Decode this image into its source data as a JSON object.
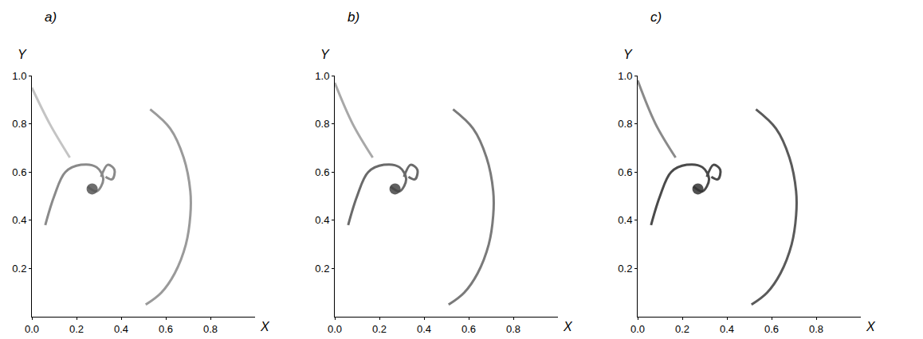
{
  "chart_data": [
    {
      "type": "line",
      "title": "a)",
      "x_label": "X",
      "y_label": "Y",
      "xlim": [
        0,
        1
      ],
      "ylim": [
        0,
        1
      ],
      "xticks": [
        {
          "value": 0,
          "label": "0.0"
        },
        {
          "value": 0.2,
          "label": "0.2"
        },
        {
          "value": 0.4,
          "label": "0.4"
        },
        {
          "value": 0.6,
          "label": "0.6"
        },
        {
          "value": 0.8,
          "label": "0.8"
        }
      ],
      "yticks": [
        {
          "value": 0.2,
          "label": "0.2"
        },
        {
          "value": 0.4,
          "label": "0.4"
        },
        {
          "value": 0.6,
          "label": "0.6"
        },
        {
          "value": 0.8,
          "label": "0.8"
        },
        {
          "value": 1,
          "label": "1.0"
        }
      ],
      "grid": false,
      "series": [
        {
          "type": "line",
          "color": "#9a9a9a",
          "x": [
            0.53,
            0.62,
            0.68,
            0.71,
            0.71,
            0.69,
            0.64,
            0.58,
            0.51
          ],
          "y": [
            0.86,
            0.78,
            0.66,
            0.52,
            0.42,
            0.3,
            0.18,
            0.1,
            0.05
          ]
        },
        {
          "type": "line",
          "color": "#8a8a8a",
          "x": [
            0.06,
            0.1,
            0.15,
            0.22,
            0.29,
            0.32,
            0.29,
            0.25
          ],
          "y": [
            0.38,
            0.5,
            0.6,
            0.63,
            0.62,
            0.57,
            0.52,
            0.54
          ]
        },
        {
          "type": "line",
          "color": "#8a8a8a",
          "x": [
            0.31,
            0.34,
            0.37,
            0.36,
            0.33
          ],
          "y": [
            0.58,
            0.63,
            0.61,
            0.57,
            0.58
          ]
        },
        {
          "type": "line",
          "color": "#c4c4c4",
          "x": [
            0.0,
            0.08,
            0.17
          ],
          "y": [
            0.95,
            0.8,
            0.66
          ]
        },
        {
          "type": "scatter",
          "marker": "circle",
          "color": "#555555",
          "x": [
            0.27
          ],
          "y": [
            0.53
          ]
        }
      ]
    },
    {
      "type": "line",
      "title": "b)",
      "x_label": "X",
      "y_label": "Y",
      "xlim": [
        0,
        1
      ],
      "ylim": [
        0,
        1
      ],
      "xticks": [
        {
          "value": 0,
          "label": "0.0"
        },
        {
          "value": 0.2,
          "label": "0.2"
        },
        {
          "value": 0.4,
          "label": "0.4"
        },
        {
          "value": 0.6,
          "label": "0.6"
        },
        {
          "value": 0.8,
          "label": "0.8"
        }
      ],
      "yticks": [
        {
          "value": 0.2,
          "label": "0.2"
        },
        {
          "value": 0.4,
          "label": "0.4"
        },
        {
          "value": 0.6,
          "label": "0.6"
        },
        {
          "value": 0.8,
          "label": "0.8"
        },
        {
          "value": 1,
          "label": "1.0"
        }
      ],
      "grid": false,
      "series": [
        {
          "type": "line",
          "color": "#7a7a7a",
          "x": [
            0.53,
            0.62,
            0.68,
            0.71,
            0.71,
            0.69,
            0.64,
            0.58,
            0.51
          ],
          "y": [
            0.86,
            0.78,
            0.66,
            0.52,
            0.42,
            0.3,
            0.18,
            0.1,
            0.05
          ]
        },
        {
          "type": "line",
          "color": "#6a6a6a",
          "x": [
            0.06,
            0.1,
            0.15,
            0.22,
            0.29,
            0.32,
            0.29,
            0.25
          ],
          "y": [
            0.38,
            0.5,
            0.6,
            0.63,
            0.62,
            0.57,
            0.52,
            0.54
          ]
        },
        {
          "type": "line",
          "color": "#6a6a6a",
          "x": [
            0.31,
            0.34,
            0.37,
            0.36,
            0.33
          ],
          "y": [
            0.58,
            0.63,
            0.61,
            0.57,
            0.58
          ]
        },
        {
          "type": "line",
          "color": "#a8a8a8",
          "x": [
            0.0,
            0.08,
            0.17
          ],
          "y": [
            0.97,
            0.8,
            0.66
          ]
        },
        {
          "type": "scatter",
          "marker": "circle",
          "color": "#444444",
          "x": [
            0.27
          ],
          "y": [
            0.53
          ]
        }
      ]
    },
    {
      "type": "line",
      "title": "c)",
      "x_label": "X",
      "y_label": "Y",
      "xlim": [
        0,
        1
      ],
      "ylim": [
        0,
        1
      ],
      "xticks": [
        {
          "value": 0,
          "label": "0.0"
        },
        {
          "value": 0.2,
          "label": "0.2"
        },
        {
          "value": 0.4,
          "label": "0.4"
        },
        {
          "value": 0.6,
          "label": "0.6"
        },
        {
          "value": 0.8,
          "label": "0.8"
        }
      ],
      "yticks": [
        {
          "value": 0.2,
          "label": "0.2"
        },
        {
          "value": 0.4,
          "label": "0.4"
        },
        {
          "value": 0.6,
          "label": "0.6"
        },
        {
          "value": 0.8,
          "label": "0.8"
        },
        {
          "value": 1,
          "label": "1.0"
        }
      ],
      "grid": false,
      "series": [
        {
          "type": "line",
          "color": "#5a5a5a",
          "x": [
            0.53,
            0.62,
            0.68,
            0.71,
            0.71,
            0.69,
            0.64,
            0.58,
            0.51
          ],
          "y": [
            0.86,
            0.78,
            0.66,
            0.52,
            0.42,
            0.3,
            0.18,
            0.1,
            0.05
          ]
        },
        {
          "type": "line",
          "color": "#4a4a4a",
          "x": [
            0.06,
            0.1,
            0.15,
            0.22,
            0.29,
            0.32,
            0.29,
            0.25
          ],
          "y": [
            0.38,
            0.5,
            0.6,
            0.63,
            0.62,
            0.57,
            0.52,
            0.54
          ]
        },
        {
          "type": "line",
          "color": "#4a4a4a",
          "x": [
            0.31,
            0.34,
            0.37,
            0.36,
            0.33
          ],
          "y": [
            0.58,
            0.63,
            0.61,
            0.57,
            0.58
          ]
        },
        {
          "type": "line",
          "color": "#8a8a8a",
          "x": [
            0.0,
            0.08,
            0.17
          ],
          "y": [
            0.98,
            0.8,
            0.66
          ]
        },
        {
          "type": "scatter",
          "marker": "circle",
          "color": "#333333",
          "x": [
            0.27
          ],
          "y": [
            0.53
          ]
        }
      ]
    }
  ]
}
